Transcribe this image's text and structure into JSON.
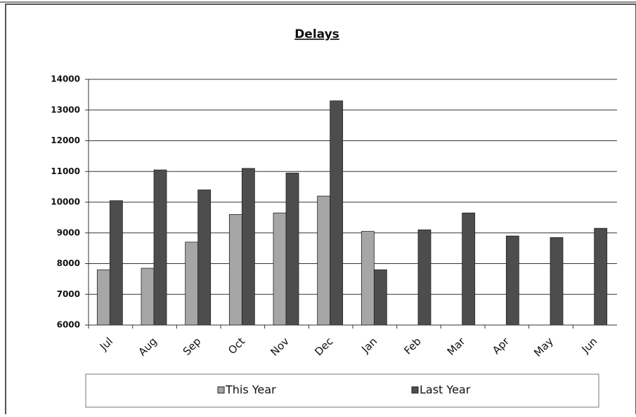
{
  "chart_data": {
    "type": "bar",
    "title": "Delays",
    "categories": [
      "Jul",
      "Aug",
      "Sep",
      "Oct",
      "Nov",
      "Dec",
      "Jan",
      "Feb",
      "Mar",
      "Apr",
      "May",
      "Jun"
    ],
    "series": [
      {
        "name": "This Year",
        "color": "#a6a6a6",
        "values": [
          7800,
          7850,
          8700,
          9600,
          9650,
          10200,
          9050,
          null,
          null,
          null,
          null,
          null
        ]
      },
      {
        "name": "Last Year",
        "color": "#4d4d4d",
        "values": [
          10050,
          11050,
          10400,
          11100,
          10950,
          13300,
          7800,
          9100,
          9650,
          8900,
          8850,
          9150
        ]
      }
    ],
    "ylim": [
      6000,
      14000
    ],
    "yticks": [
      6000,
      7000,
      8000,
      9000,
      10000,
      11000,
      12000,
      13000,
      14000
    ],
    "grid": true
  }
}
